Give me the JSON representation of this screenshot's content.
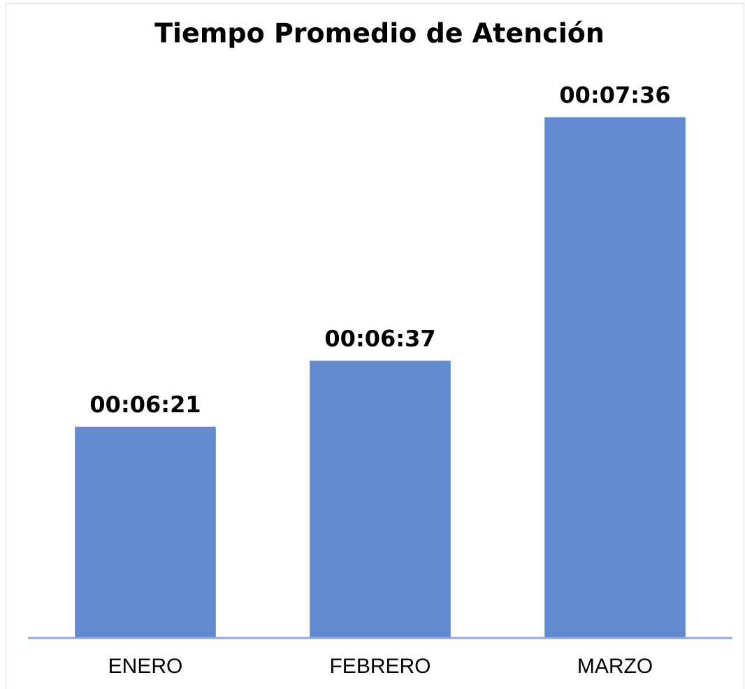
{
  "chart_data": {
    "type": "bar",
    "title": "Tiempo Promedio de Atención",
    "categories": [
      "ENERO",
      "FEBRERO",
      "MARZO"
    ],
    "values": [
      381,
      397,
      456
    ],
    "value_labels": [
      "00:06:21",
      "00:06:37",
      "00:07:36"
    ],
    "color": "#6389cf",
    "ylim": [
      330,
      480
    ]
  }
}
